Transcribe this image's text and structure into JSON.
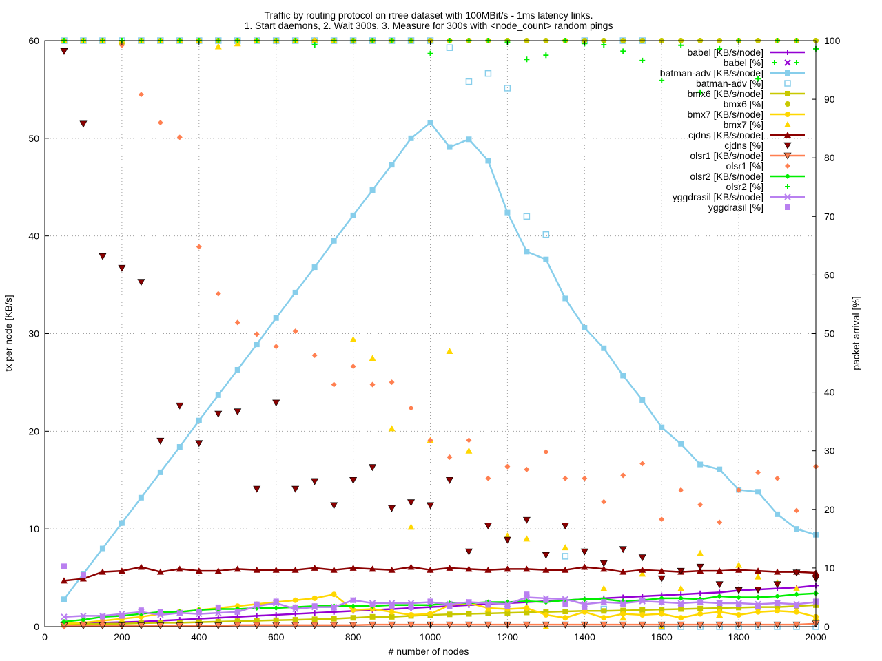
{
  "chart_data": {
    "type": "line",
    "title_line1": "Traffic by routing protocol on rtree dataset with 100MBit/s - 1ms latency links.",
    "title_line2": "1. Start daemons, 2. Wait 300s, 3. Measure for 300s with <node_count> random pings",
    "xlabel": "# number of nodes",
    "ylabel": "tx per node [KB/s]",
    "y2label": "packet arrival [%]",
    "xlim": [
      0,
      2000
    ],
    "ylim": [
      0,
      60
    ],
    "y2lim": [
      0,
      100
    ],
    "xticks": [
      0,
      200,
      400,
      600,
      800,
      1000,
      1200,
      1400,
      1600,
      1800,
      2000
    ],
    "yticks": [
      0,
      10,
      20,
      30,
      40,
      50,
      60
    ],
    "y2ticks": [
      0,
      10,
      20,
      30,
      40,
      50,
      60,
      70,
      80,
      90,
      100
    ],
    "grid": true,
    "legend_position": "top-right",
    "x": [
      50,
      100,
      150,
      200,
      250,
      300,
      350,
      400,
      450,
      500,
      550,
      600,
      650,
      700,
      750,
      800,
      850,
      900,
      950,
      1000,
      1050,
      1100,
      1150,
      1200,
      1250,
      1300,
      1350,
      1400,
      1450,
      1500,
      1550,
      1600,
      1650,
      1700,
      1750,
      1800,
      1850,
      1900,
      1950,
      2000
    ],
    "series": [
      {
        "name": "babel [KB/s/node]",
        "axis": "y",
        "style": "line",
        "marker": "plus",
        "color": "#9400d3",
        "values": [
          0.3,
          0.35,
          0.4,
          0.45,
          0.5,
          0.6,
          0.7,
          0.8,
          0.9,
          1.0,
          1.1,
          1.2,
          1.3,
          1.4,
          1.5,
          1.6,
          1.7,
          1.8,
          1.9,
          2.0,
          2.1,
          2.2,
          2.3,
          2.4,
          2.5,
          2.6,
          2.7,
          2.8,
          2.9,
          3.0,
          3.1,
          3.2,
          3.3,
          3.4,
          3.5,
          3.7,
          3.8,
          3.9,
          4.0,
          4.2
        ]
      },
      {
        "name": "babel [%]",
        "axis": "y2",
        "style": "points",
        "marker": "plus",
        "color": "#00ee00",
        "values": [
          100,
          100,
          100,
          100,
          100,
          100,
          100,
          100,
          100,
          100,
          100,
          100,
          100,
          100,
          100,
          100,
          100,
          100,
          100,
          100,
          100,
          100,
          100,
          100,
          100,
          100,
          100,
          100,
          100,
          100,
          100,
          100,
          100,
          100,
          100,
          100,
          100,
          100,
          100,
          100
        ]
      },
      {
        "name": "batman-adv [KB/s/node]",
        "axis": "y",
        "style": "line",
        "marker": "square",
        "color": "#87ceeb",
        "values": [
          2.8,
          5.4,
          8.0,
          10.6,
          13.2,
          15.8,
          18.4,
          21.1,
          23.7,
          26.3,
          28.9,
          31.6,
          34.2,
          36.8,
          39.5,
          42.1,
          44.7,
          47.3,
          50.0,
          51.6,
          49.1,
          49.9,
          47.7,
          42.4,
          38.4,
          37.6,
          33.6,
          30.6,
          28.5,
          25.7,
          23.2,
          20.4,
          18.7,
          16.6,
          16.1,
          14.0,
          13.8,
          11.5,
          10.0,
          9.4
        ]
      },
      {
        "name": "batman-adv [%]",
        "axis": "y2",
        "style": "points",
        "marker": "open-square",
        "color": "#87ceeb",
        "values": [
          100,
          100,
          100,
          100,
          100,
          100,
          100,
          100,
          100,
          100,
          100,
          100,
          100,
          100,
          100,
          100,
          100,
          100,
          100,
          100,
          98.8,
          93,
          94.4,
          91.9,
          70,
          66.9,
          12,
          100,
          3,
          100,
          100,
          0,
          0,
          0,
          0,
          0,
          0,
          0,
          0,
          0
        ]
      },
      {
        "name": "bmx6 [KB/s/node]",
        "axis": "y",
        "style": "line",
        "marker": "square",
        "color": "#c8c800",
        "values": [
          0.2,
          0.25,
          0.3,
          0.3,
          0.35,
          0.4,
          0.4,
          0.45,
          0.5,
          0.55,
          0.6,
          0.65,
          0.7,
          0.75,
          0.8,
          0.9,
          1.0,
          1.0,
          1.1,
          1.2,
          1.25,
          1.3,
          1.35,
          1.4,
          1.45,
          1.5,
          1.55,
          1.6,
          1.6,
          1.65,
          1.7,
          1.75,
          1.8,
          1.85,
          1.9,
          1.95,
          2.0,
          2.0,
          2.1,
          2.2
        ]
      },
      {
        "name": "bmx6 [%]",
        "axis": "y2",
        "style": "points",
        "marker": "circle",
        "color": "#c8c800",
        "values": [
          100,
          100,
          100,
          99.5,
          100,
          100,
          100,
          100,
          100,
          100,
          100,
          100,
          100,
          100,
          100,
          100,
          100,
          100,
          100,
          100,
          100,
          100,
          100,
          100,
          100,
          100,
          100,
          100,
          100,
          100,
          100,
          100,
          100,
          100,
          100,
          100,
          100,
          100,
          100,
          100
        ]
      },
      {
        "name": "bmx7 [KB/s/node]",
        "axis": "y",
        "style": "line",
        "marker": "circle",
        "color": "#ffd700",
        "values": [
          0.3,
          0.4,
          0.6,
          0.8,
          1.0,
          1.3,
          1.5,
          1.7,
          1.9,
          2.1,
          2.3,
          2.5,
          2.7,
          2.9,
          3.3,
          1.7,
          1.8,
          1.5,
          1.2,
          1.3,
          2.2,
          2.4,
          1.9,
          1.8,
          1.9,
          1.2,
          0.9,
          1.5,
          0.9,
          1.3,
          1.2,
          1.3,
          0.9,
          1.3,
          1.5,
          1.2,
          1.5,
          1.6,
          1.5,
          1.0
        ]
      },
      {
        "name": "bmx7 [%]",
        "axis": "y2",
        "style": "points",
        "marker": "triangle",
        "color": "#ffd700",
        "values": [
          100,
          100,
          100,
          100,
          100,
          100,
          100,
          100,
          99,
          99.5,
          100,
          100,
          100,
          100,
          100,
          49,
          45.8,
          33.8,
          17,
          31.8,
          47,
          30,
          3,
          15.5,
          15,
          0,
          13.5,
          3,
          6.5,
          1.5,
          9,
          0,
          6.5,
          12.5,
          2,
          10.5,
          8.5,
          7.5,
          6.5,
          1.5
        ]
      },
      {
        "name": "cjdns [KB/s/node]",
        "axis": "y",
        "style": "line",
        "marker": "triangle",
        "color": "#8b0000",
        "values": [
          4.7,
          4.9,
          5.6,
          5.7,
          6.1,
          5.6,
          5.9,
          5.7,
          5.7,
          5.9,
          5.8,
          5.8,
          5.8,
          6.0,
          5.8,
          6.0,
          5.9,
          5.8,
          6.1,
          5.8,
          6.0,
          5.9,
          5.8,
          5.9,
          5.9,
          5.8,
          5.8,
          6.1,
          5.9,
          5.6,
          5.8,
          5.7,
          5.6,
          5.7,
          5.7,
          5.8,
          5.7,
          5.6,
          5.6,
          5.5
        ]
      },
      {
        "name": "cjdns [%]",
        "axis": "y2",
        "style": "points",
        "marker": "inv-triangle",
        "color": "#8b0000",
        "values": [
          98.2,
          85.8,
          63.2,
          61.2,
          58.8,
          31.7,
          37.7,
          31.3,
          36.3,
          36.7,
          23.5,
          38.2,
          23.5,
          24.8,
          20.7,
          25,
          27.2,
          20.2,
          21.2,
          20.7,
          25,
          12.8,
          17.2,
          14.8,
          18.2,
          12.2,
          17.2,
          12.8,
          10.8,
          13.2,
          11.8,
          8.2,
          9.5,
          10.2,
          7.2,
          6.2,
          6.3,
          7.2,
          9.2,
          8.2
        ]
      },
      {
        "name": "olsr1 [KB/s/node]",
        "axis": "y",
        "style": "line",
        "marker": "inv-triangle",
        "color": "#ff7f50",
        "values": [
          0.1,
          0.1,
          0.1,
          0.1,
          0.1,
          0.1,
          0.1,
          0.1,
          0.1,
          0.15,
          0.15,
          0.15,
          0.15,
          0.15,
          0.15,
          0.15,
          0.2,
          0.2,
          0.2,
          0.2,
          0.2,
          0.2,
          0.2,
          0.2,
          0.2,
          0.2,
          0.2,
          0.2,
          0.2,
          0.2,
          0.2,
          0.2,
          0.2,
          0.2,
          0.2,
          0.2,
          0.2,
          0.2,
          0.2,
          0.3
        ]
      },
      {
        "name": "olsr1 [%]",
        "axis": "y2",
        "style": "points",
        "marker": "diamond",
        "color": "#ff7f50",
        "values": [
          0,
          0.8,
          0.9,
          99.2,
          90.8,
          86,
          83.5,
          64.8,
          56.8,
          51.9,
          49.9,
          47.8,
          50.4,
          46.3,
          41.3,
          44.4,
          41.3,
          41.7,
          37.3,
          31.8,
          28.9,
          31.8,
          25.3,
          27.3,
          26.8,
          29.8,
          25.3,
          25.3,
          21.3,
          25.8,
          27.8,
          18.3,
          23.3,
          20.8,
          17.8,
          23.3,
          26.3,
          25.3,
          19.8,
          27.3
        ]
      },
      {
        "name": "olsr2 [KB/s/node]",
        "axis": "y",
        "style": "line",
        "marker": "diamond",
        "color": "#00ee00",
        "values": [
          0.5,
          0.7,
          1.0,
          1.1,
          1.3,
          1.5,
          1.5,
          1.7,
          1.8,
          1.8,
          1.9,
          1.9,
          2.0,
          2.1,
          2.1,
          2.1,
          2.1,
          2.2,
          2.2,
          2.2,
          2.4,
          2.4,
          2.5,
          2.5,
          2.6,
          2.5,
          2.7,
          2.8,
          2.8,
          2.6,
          2.7,
          2.9,
          2.9,
          2.8,
          3.1,
          3.0,
          3.0,
          3.1,
          3.3,
          3.4
        ]
      },
      {
        "name": "olsr2 [%]",
        "axis": "y2",
        "style": "points",
        "marker": "plus",
        "color": "#00ee00",
        "values": [
          100,
          100,
          100,
          100,
          100,
          100,
          100,
          100,
          100,
          100,
          100,
          100,
          100,
          99.3,
          100,
          100,
          100,
          100,
          100,
          97.8,
          100,
          100,
          100,
          99.7,
          96.8,
          97.5,
          100,
          99.5,
          99.3,
          98.2,
          96.6,
          93.2,
          99.2,
          91.2,
          98.6,
          100,
          93.5,
          100,
          100,
          98.6
        ]
      },
      {
        "name": "yggdrasil [KB/s/node]",
        "axis": "y",
        "style": "line",
        "marker": "cross",
        "color": "#b980f0",
        "values": [
          1.0,
          1.1,
          1.1,
          1.3,
          1.5,
          1.2,
          1.4,
          1.3,
          1.4,
          1.5,
          2.1,
          2.4,
          1.8,
          2.0,
          2.0,
          2.7,
          2.4,
          2.4,
          2.4,
          2.5,
          2.3,
          2.5,
          2.4,
          2.3,
          3.0,
          2.9,
          2.8,
          2.3,
          2.5,
          2.4,
          2.6,
          2.5,
          2.4,
          2.5,
          2.4,
          2.4,
          2.3,
          2.4,
          2.3,
          2.5
        ]
      },
      {
        "name": "yggdrasil [%]",
        "axis": "y2",
        "style": "points",
        "marker": "filled-square",
        "color": "#b980f0",
        "values": [
          10.3,
          8.8,
          1.7,
          1.8,
          2.8,
          2.5,
          2.3,
          2.5,
          3.3,
          2.5,
          3.8,
          4.3,
          3.3,
          3.5,
          3.2,
          4.5,
          3.8,
          3.5,
          3.3,
          4.3,
          3.5,
          4.2,
          3.7,
          3.5,
          5.5,
          4.5,
          3.8,
          3.3,
          4.2,
          3.8,
          4.5,
          4.2,
          3.8,
          4.2,
          4.0,
          3.8,
          3.5,
          4.0,
          3.6,
          4.3
        ]
      }
    ]
  }
}
